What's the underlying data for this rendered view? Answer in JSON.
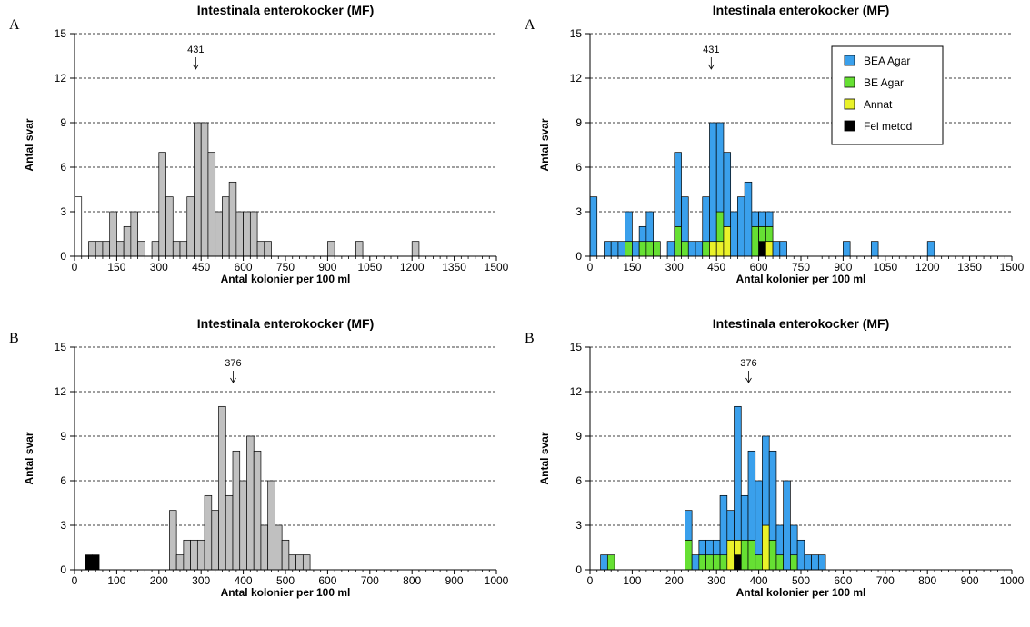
{
  "colors": {
    "gray": "#c0c0c0",
    "white": "#ffffff",
    "bea": "#3aa0ec",
    "be": "#66e033",
    "annat": "#eaf22a",
    "felmetod": "#000000",
    "grid": "#000000"
  },
  "chart_data": [
    {
      "type": "bar",
      "panel_label": "A",
      "title": "Intestinala enterokocker (MF)",
      "xlabel": "Antal kolonier per 100 ml",
      "ylabel": "Antal svar",
      "xlim": [
        0,
        1500
      ],
      "ylim": [
        0,
        15
      ],
      "xticks": [
        "0",
        "150",
        "300",
        "450",
        "600",
        "750",
        "900",
        "1050",
        "1200",
        "1350",
        "1500"
      ],
      "yticks": [
        "0",
        "3",
        "6",
        "9",
        "12",
        "15"
      ],
      "grid": "horizontal dashed",
      "annotation": {
        "label": "431",
        "x": 431
      },
      "bin_width": 25,
      "bins": [
        {
          "x": 0,
          "total": 4,
          "white": 4
        },
        {
          "x": 50,
          "total": 1
        },
        {
          "x": 75,
          "total": 1
        },
        {
          "x": 100,
          "total": 1
        },
        {
          "x": 125,
          "total": 3
        },
        {
          "x": 150,
          "total": 1
        },
        {
          "x": 175,
          "total": 2
        },
        {
          "x": 200,
          "total": 3
        },
        {
          "x": 225,
          "total": 1
        },
        {
          "x": 275,
          "total": 1
        },
        {
          "x": 300,
          "total": 7
        },
        {
          "x": 325,
          "total": 4
        },
        {
          "x": 350,
          "total": 1
        },
        {
          "x": 375,
          "total": 1
        },
        {
          "x": 400,
          "total": 4
        },
        {
          "x": 425,
          "total": 9
        },
        {
          "x": 450,
          "total": 9
        },
        {
          "x": 475,
          "total": 7
        },
        {
          "x": 500,
          "total": 3
        },
        {
          "x": 525,
          "total": 4
        },
        {
          "x": 550,
          "total": 5
        },
        {
          "x": 575,
          "total": 3
        },
        {
          "x": 600,
          "total": 3
        },
        {
          "x": 625,
          "total": 3
        },
        {
          "x": 650,
          "total": 1
        },
        {
          "x": 675,
          "total": 1
        },
        {
          "x": 900,
          "total": 1
        },
        {
          "x": 1000,
          "total": 1
        },
        {
          "x": 1200,
          "total": 1
        }
      ]
    },
    {
      "type": "bar",
      "panel_label": "A",
      "title": "Intestinala enterokocker (MF)",
      "xlabel": "Antal kolonier per 100 ml",
      "ylabel": "Antal svar",
      "xlim": [
        0,
        1500
      ],
      "ylim": [
        0,
        15
      ],
      "xticks": [
        "0",
        "150",
        "300",
        "450",
        "600",
        "750",
        "900",
        "1050",
        "1200",
        "1350",
        "1500"
      ],
      "yticks": [
        "0",
        "3",
        "6",
        "9",
        "12",
        "15"
      ],
      "grid": "horizontal dashed",
      "annotation": {
        "label": "431",
        "x": 431
      },
      "legend": {
        "placement": "top-right",
        "entries": [
          {
            "label": "BEA Agar",
            "color": "#3aa0ec"
          },
          {
            "label": "BE Agar",
            "color": "#66e033"
          },
          {
            "label": "Annat",
            "color": "#eaf22a"
          },
          {
            "label": "Fel metod",
            "color": "#000000"
          }
        ]
      },
      "bin_width": 25,
      "bins": [
        {
          "x": 0,
          "bea": 4
        },
        {
          "x": 50,
          "bea": 1
        },
        {
          "x": 75,
          "bea": 1
        },
        {
          "x": 100,
          "bea": 1
        },
        {
          "x": 125,
          "be": 1,
          "bea": 2
        },
        {
          "x": 150,
          "bea": 1
        },
        {
          "x": 175,
          "be": 1,
          "bea": 1
        },
        {
          "x": 200,
          "be": 1,
          "bea": 2
        },
        {
          "x": 225,
          "be": 1
        },
        {
          "x": 275,
          "bea": 1
        },
        {
          "x": 300,
          "be": 2,
          "bea": 5
        },
        {
          "x": 325,
          "be": 1,
          "bea": 3
        },
        {
          "x": 350,
          "bea": 1
        },
        {
          "x": 375,
          "bea": 1
        },
        {
          "x": 400,
          "be": 1,
          "bea": 3
        },
        {
          "x": 425,
          "annat": 1,
          "bea": 8
        },
        {
          "x": 450,
          "annat": 1,
          "be": 2,
          "bea": 6
        },
        {
          "x": 475,
          "annat": 2,
          "bea": 5
        },
        {
          "x": 500,
          "bea": 3
        },
        {
          "x": 525,
          "bea": 4
        },
        {
          "x": 550,
          "bea": 5
        },
        {
          "x": 575,
          "be": 2,
          "bea": 1
        },
        {
          "x": 600,
          "felmetod": 1,
          "be": 1,
          "bea": 1
        },
        {
          "x": 625,
          "annat": 1,
          "be": 1,
          "bea": 1
        },
        {
          "x": 650,
          "bea": 1
        },
        {
          "x": 675,
          "bea": 1
        },
        {
          "x": 900,
          "bea": 1
        },
        {
          "x": 1000,
          "bea": 1
        },
        {
          "x": 1200,
          "bea": 1
        }
      ]
    },
    {
      "type": "bar",
      "panel_label": "B",
      "title": "Intestinala enterokocker (MF)",
      "xlabel": "Antal kolonier per 100 ml",
      "ylabel": "Antal svar",
      "xlim": [
        0,
        1000
      ],
      "ylim": [
        0,
        15
      ],
      "xticks": [
        "0",
        "100",
        "200",
        "300",
        "400",
        "500",
        "600",
        "700",
        "800",
        "900",
        "1000"
      ],
      "yticks": [
        "0",
        "3",
        "6",
        "9",
        "12",
        "15"
      ],
      "grid": "horizontal dashed",
      "annotation": {
        "label": "376",
        "x": 376
      },
      "bin_width": 16.67,
      "bins": [
        {
          "x": 25,
          "total": 1,
          "black": 1
        },
        {
          "x": 41.67,
          "total": 1,
          "black": 1
        },
        {
          "x": 225,
          "total": 4
        },
        {
          "x": 241.67,
          "total": 1
        },
        {
          "x": 258.33,
          "total": 2
        },
        {
          "x": 275,
          "total": 2
        },
        {
          "x": 291.67,
          "total": 2
        },
        {
          "x": 308.33,
          "total": 5
        },
        {
          "x": 325,
          "total": 4
        },
        {
          "x": 341.67,
          "total": 11
        },
        {
          "x": 358.33,
          "total": 5
        },
        {
          "x": 375,
          "total": 8
        },
        {
          "x": 391.67,
          "total": 6
        },
        {
          "x": 408.33,
          "total": 9
        },
        {
          "x": 425,
          "total": 8
        },
        {
          "x": 441.67,
          "total": 3
        },
        {
          "x": 458.33,
          "total": 6
        },
        {
          "x": 475,
          "total": 3
        },
        {
          "x": 491.67,
          "total": 2
        },
        {
          "x": 508.33,
          "total": 1
        },
        {
          "x": 525,
          "total": 1
        },
        {
          "x": 541.67,
          "total": 1
        }
      ]
    },
    {
      "type": "bar",
      "panel_label": "B",
      "title": "Intestinala enterokocker (MF)",
      "xlabel": "Antal kolonier per 100 ml",
      "ylabel": "Antal svar",
      "xlim": [
        0,
        1000
      ],
      "ylim": [
        0,
        15
      ],
      "xticks": [
        "0",
        "100",
        "200",
        "300",
        "400",
        "500",
        "600",
        "700",
        "800",
        "900",
        "1000"
      ],
      "yticks": [
        "0",
        "3",
        "6",
        "9",
        "12",
        "15"
      ],
      "grid": "horizontal dashed",
      "annotation": {
        "label": "376",
        "x": 376
      },
      "bin_width": 16.67,
      "bins": [
        {
          "x": 25,
          "bea": 1
        },
        {
          "x": 41.67,
          "be": 1
        },
        {
          "x": 225,
          "be": 2,
          "bea": 2
        },
        {
          "x": 241.67,
          "bea": 1
        },
        {
          "x": 258.33,
          "be": 1,
          "bea": 1
        },
        {
          "x": 275,
          "be": 1,
          "bea": 1
        },
        {
          "x": 291.67,
          "be": 1,
          "bea": 1
        },
        {
          "x": 308.33,
          "be": 1,
          "bea": 4
        },
        {
          "x": 325,
          "annat": 2,
          "bea": 2
        },
        {
          "x": 341.67,
          "felmetod": 1,
          "annat": 1,
          "bea": 9
        },
        {
          "x": 358.33,
          "be": 2,
          "bea": 3
        },
        {
          "x": 375,
          "be": 2,
          "bea": 6
        },
        {
          "x": 391.67,
          "be": 1,
          "bea": 5
        },
        {
          "x": 408.33,
          "annat": 3,
          "bea": 6
        },
        {
          "x": 425,
          "be": 2,
          "bea": 6
        },
        {
          "x": 441.67,
          "be": 1,
          "bea": 2
        },
        {
          "x": 458.33,
          "bea": 6
        },
        {
          "x": 475,
          "be": 1,
          "bea": 2
        },
        {
          "x": 491.67,
          "bea": 2
        },
        {
          "x": 508.33,
          "bea": 1
        },
        {
          "x": 525,
          "bea": 1
        },
        {
          "x": 541.67,
          "bea": 1
        }
      ]
    }
  ]
}
